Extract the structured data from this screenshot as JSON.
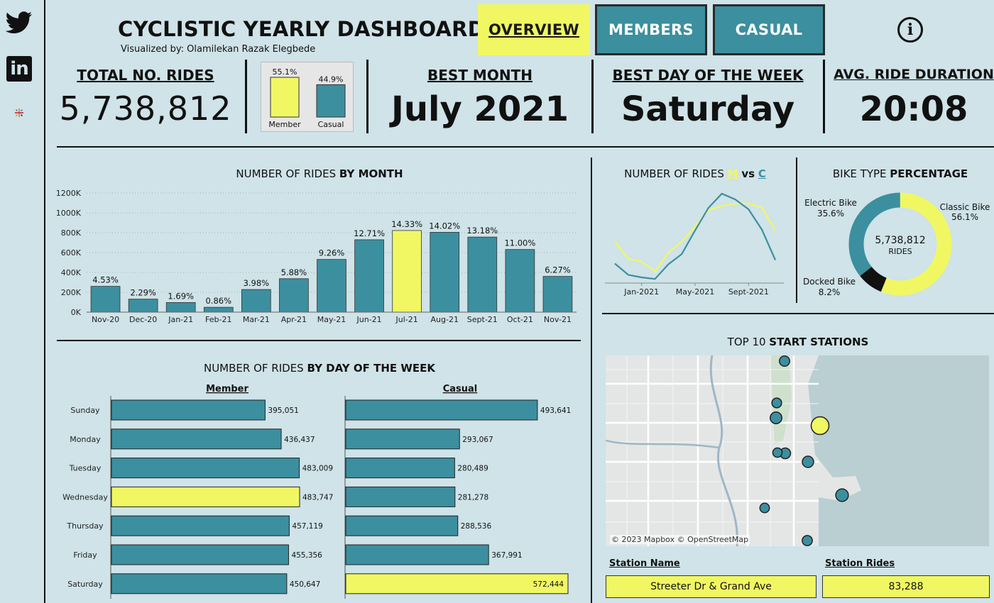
{
  "header": {
    "title": "CYCLISTIC YEARLY DASHBOARD |",
    "subtitle": "Visualized by: Olamilekan Razak Elegbede",
    "nav": {
      "overview": "OVERVIEW",
      "members": "MEMBERS",
      "casual": "CASUAL"
    },
    "info_glyph": "i"
  },
  "sidebar": {
    "icons": [
      "twitter-icon",
      "linkedin-icon",
      "tableau-icon"
    ],
    "linkedin_text": "in"
  },
  "colors": {
    "background": "#cfe3e8",
    "teal": "#3c8f9f",
    "yellow": "#f0f763",
    "black": "#111111"
  },
  "kpis": {
    "total_rides": {
      "label": "TOTAL NO. RIDES",
      "value": "5,738,812"
    },
    "best_month": {
      "label": "BEST MONTH",
      "value": "July 2021"
    },
    "best_day": {
      "label": "BEST DAY OF THE WEEK",
      "value": "Saturday"
    },
    "avg_duration": {
      "label": "AVG. RIDE DURATION",
      "value": "20:08"
    }
  },
  "stations": {
    "title_prefix": "TOP 10 ",
    "title_bold": "START STATIONS",
    "map_credit": "© 2023 Mapbox © OpenStreetMap",
    "col_name": "Station Name",
    "col_rides": "Station Rides",
    "top_name": "Streeter Dr & Grand Ave",
    "top_rides": "83,288"
  },
  "chart_data": [
    {
      "id": "member_share",
      "type": "bar",
      "categories": [
        "Member",
        "Casual"
      ],
      "values": [
        55.1,
        44.9
      ],
      "labels": [
        "55.1%",
        "44.9%"
      ],
      "colors": [
        "#f0f763",
        "#3c8f9f"
      ]
    },
    {
      "id": "rides_by_month",
      "type": "bar",
      "title": "NUMBER OF RIDES",
      "title_bold": "BY MONTH",
      "categories": [
        "Nov-20",
        "Dec-20",
        "Jan-21",
        "Feb-21",
        "Mar-21",
        "Apr-21",
        "May-21",
        "Jun-21",
        "Jul-21",
        "Aug-21",
        "Sept-21",
        "Oct-21",
        "Nov-21"
      ],
      "values": [
        260000,
        131000,
        97000,
        49000,
        228000,
        337000,
        531000,
        729000,
        822000,
        804000,
        756000,
        631000,
        360000
      ],
      "labels": [
        "4.53%",
        "2.29%",
        "1.69%",
        "0.86%",
        "3.98%",
        "5.88%",
        "9.26%",
        "12.71%",
        "14.33%",
        "14.02%",
        "13.18%",
        "11.00%",
        "6.27%"
      ],
      "highlight": "Jul-21",
      "yticks": [
        "0K",
        "200K",
        "400K",
        "600K",
        "800K",
        "1000K",
        "1200K"
      ],
      "ylim": [
        0,
        1200000
      ],
      "grid": true
    },
    {
      "id": "member_vs_casual",
      "type": "line",
      "title": "NUMBER OF RIDES",
      "title_m": "M",
      "title_vs": "vs",
      "title_c": "C",
      "x": [
        "Nov-20",
        "Dec-20",
        "Jan-21",
        "Feb-21",
        "Mar-21",
        "Apr-21",
        "May-21",
        "Jun-21",
        "Jul-21",
        "Aug-21",
        "Sept-21",
        "Oct-21",
        "Nov-21"
      ],
      "xticks": [
        "Jan-2021",
        "May-2021",
        "Sept-2021"
      ],
      "series": [
        {
          "color": "#f0f763",
          "values": [
            199000,
            112000,
            97000,
            49000,
            144000,
            200000,
            275000,
            359000,
            380000,
            391000,
            393000,
            371000,
            255000
          ]
        },
        {
          "color": "#3c8f9f",
          "values": [
            88000,
            31000,
            18000,
            10000,
            84000,
            136000,
            256000,
            370000,
            442000,
            413000,
            363000,
            259000,
            106000
          ]
        }
      ]
    },
    {
      "id": "bike_type",
      "type": "pie",
      "title": "BIKE TYPE",
      "title_bold": "PERCENTAGE",
      "center_value": "5,738,812",
      "center_label": "RIDES",
      "slices": [
        {
          "name": "Classic Bike",
          "value": 56.1,
          "label": "56.1%",
          "color": "#f0f763"
        },
        {
          "name": "Docked Bike",
          "value": 8.2,
          "label": "8.2%",
          "color": "#111111"
        },
        {
          "name": "Electric Bike",
          "value": 35.6,
          "label": "35.6%",
          "color": "#3c8f9f"
        }
      ]
    },
    {
      "id": "rides_by_weekday",
      "type": "bar",
      "title": "NUMBER OF RIDES",
      "title_bold": "BY DAY OF THE WEEK",
      "categories": [
        "Sunday",
        "Monday",
        "Tuesday",
        "Wednesday",
        "Thursday",
        "Friday",
        "Saturday"
      ],
      "series": [
        {
          "name": "Member",
          "values": [
            395051,
            436437,
            483009,
            483747,
            457119,
            455356,
            450647
          ],
          "labels": [
            "395,051",
            "436,437",
            "483,009",
            "483,747",
            "457,119",
            "455,356",
            "450,647"
          ],
          "highlight": "Wednesday"
        },
        {
          "name": "Casual",
          "values": [
            493641,
            293067,
            280489,
            281278,
            288536,
            367991,
            572444
          ],
          "labels": [
            "493,641",
            "293,067",
            "280,489",
            "281,278",
            "288,536",
            "367,991",
            "572,444"
          ],
          "highlight": "Saturday"
        }
      ]
    },
    {
      "id": "start_stations",
      "type": "scatter",
      "highlight": "Streeter Dr & Grand Ave",
      "stations": [
        {
          "name": "Streeter Dr & Grand Ave",
          "rides": 83288
        },
        {
          "name": "",
          "rides": 42000
        },
        {
          "name": "",
          "rides": 36000
        },
        {
          "name": "",
          "rides": 34000
        },
        {
          "name": "",
          "rides": 30000
        },
        {
          "name": "",
          "rides": 28000
        },
        {
          "name": "",
          "rides": 27000
        },
        {
          "name": "",
          "rides": 25000
        },
        {
          "name": "",
          "rides": 24000
        },
        {
          "name": "",
          "rides": 23000
        }
      ]
    }
  ]
}
